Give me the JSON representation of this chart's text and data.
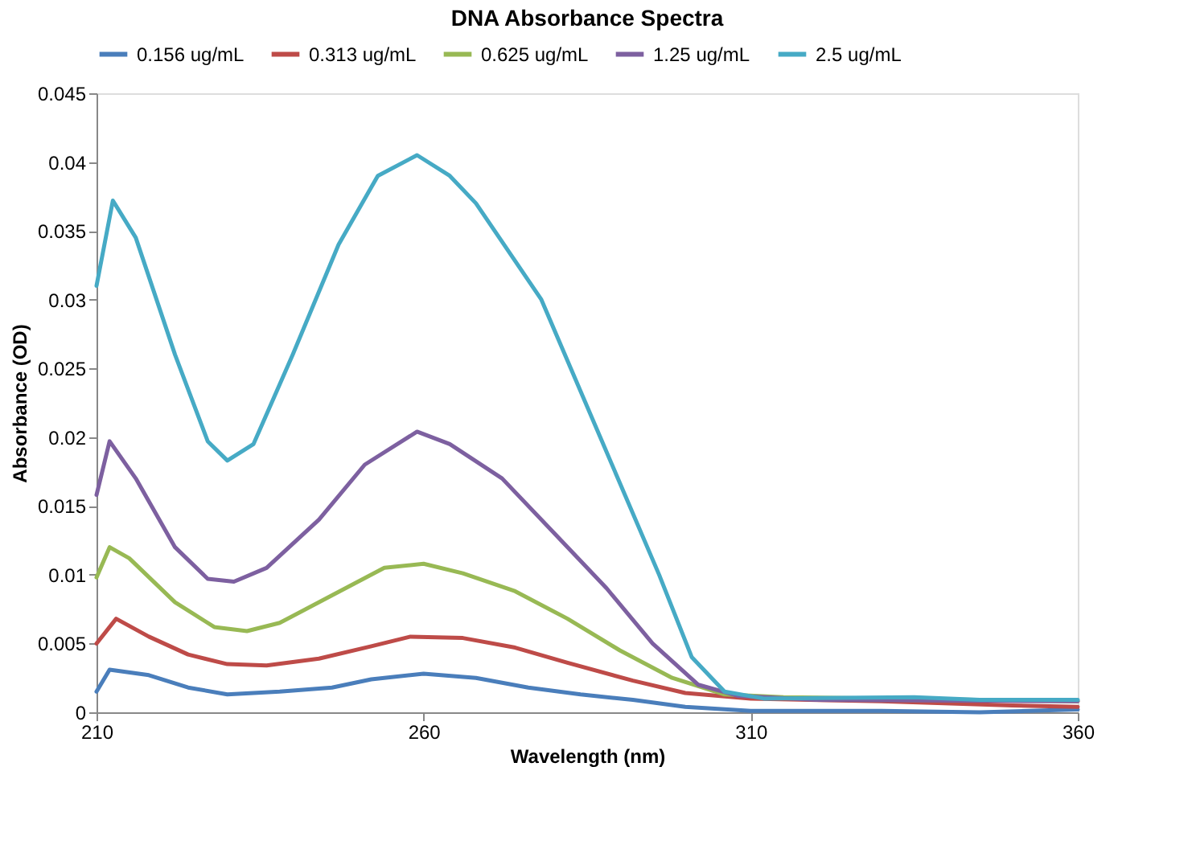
{
  "chart_data": {
    "type": "line",
    "title": "DNA Absorbance Spectra",
    "xlabel": "Wavelength (nm)",
    "ylabel": "Absorbance (OD)",
    "xlim": [
      210,
      360
    ],
    "xticks": [
      210,
      260,
      310,
      360
    ],
    "ylim": [
      0,
      0.045
    ],
    "yticks": [
      0,
      0.005,
      0.01,
      0.015,
      0.02,
      0.025,
      0.03,
      0.035,
      0.04,
      0.045
    ],
    "grid": false,
    "legend": "top",
    "marker": "none",
    "line_style": "solid",
    "series": [
      {
        "name": "0.156 ug/mL",
        "color": "#4a7ebb",
        "x": [
          210,
          212,
          218,
          224,
          230,
          238,
          246,
          252,
          260,
          268,
          276,
          284,
          292,
          300,
          310,
          330,
          345,
          360
        ],
        "values": [
          0.0015,
          0.0031,
          0.0027,
          0.0018,
          0.0013,
          0.0015,
          0.0018,
          0.0024,
          0.0028,
          0.0025,
          0.0018,
          0.0013,
          0.0009,
          0.0004,
          0.0001,
          0.0001,
          0.0,
          0.0002
        ]
      },
      {
        "name": "0.313 ug/mL",
        "color": "#be4b48",
        "x": [
          210,
          213,
          218,
          224,
          230,
          236,
          244,
          252,
          258,
          266,
          274,
          282,
          292,
          300,
          310,
          330,
          350,
          360
        ],
        "values": [
          0.005,
          0.0068,
          0.0055,
          0.0042,
          0.0035,
          0.0034,
          0.0039,
          0.0048,
          0.0055,
          0.0054,
          0.0047,
          0.0036,
          0.0023,
          0.0014,
          0.001,
          0.0008,
          0.0005,
          0.0004
        ]
      },
      {
        "name": "0.625 ug/mL",
        "color": "#98b954",
        "x": [
          210,
          212,
          215,
          222,
          228,
          233,
          238,
          246,
          254,
          260,
          266,
          274,
          282,
          290,
          298,
          306,
          315,
          330,
          360
        ],
        "values": [
          0.0098,
          0.012,
          0.0112,
          0.008,
          0.0062,
          0.0059,
          0.0065,
          0.0085,
          0.0105,
          0.0108,
          0.0101,
          0.0088,
          0.0068,
          0.0045,
          0.0025,
          0.0013,
          0.0011,
          0.001,
          0.0008
        ]
      },
      {
        "name": "1.25 ug/mL",
        "color": "#7d60a0",
        "x": [
          210,
          212,
          216,
          222,
          227,
          231,
          236,
          244,
          251,
          259,
          264,
          272,
          280,
          288,
          295,
          302,
          308,
          320,
          360
        ],
        "values": [
          0.0158,
          0.0197,
          0.017,
          0.012,
          0.0097,
          0.0095,
          0.0105,
          0.014,
          0.018,
          0.0204,
          0.0195,
          0.017,
          0.013,
          0.009,
          0.005,
          0.002,
          0.0012,
          0.0009,
          0.0008
        ]
      },
      {
        "name": "2.5 ug/mL",
        "color": "#46aac5",
        "x": [
          210,
          212.5,
          216,
          222,
          227,
          230,
          234,
          240,
          247,
          253,
          259,
          264,
          268,
          278,
          287,
          296,
          301,
          306,
          312,
          335,
          345,
          360
        ],
        "values": [
          0.031,
          0.0372,
          0.0345,
          0.026,
          0.0197,
          0.0183,
          0.0195,
          0.026,
          0.034,
          0.039,
          0.0405,
          0.039,
          0.037,
          0.03,
          0.02,
          0.01,
          0.004,
          0.0015,
          0.001,
          0.0011,
          0.0009,
          0.0009
        ]
      }
    ]
  }
}
